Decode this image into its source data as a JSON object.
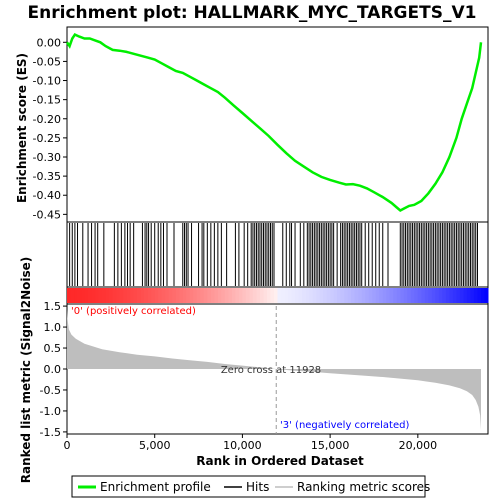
{
  "chart_data": [
    {
      "type": "line",
      "title": "Enrichment plot: HALLMARK_MYC_TARGETS_V1",
      "ylabel": "Enrichment score (ES)",
      "ylim": [
        -0.47,
        0.04
      ],
      "xlim": [
        0,
        24000
      ],
      "y_ticks": [
        "0.00",
        "-0.05",
        "-0.10",
        "-0.15",
        "-0.20",
        "-0.25",
        "-0.30",
        "-0.35",
        "-0.40",
        "-0.45"
      ],
      "y_tick_values": [
        0.0,
        -0.05,
        -0.1,
        -0.15,
        -0.2,
        -0.25,
        -0.3,
        -0.35,
        -0.4,
        -0.45
      ],
      "series": [
        {
          "name": "Enrichment profile",
          "color": "#00ee00",
          "x": [
            0,
            150,
            300,
            450,
            700,
            1000,
            1300,
            1600,
            1900,
            2200,
            2600,
            3000,
            3400,
            3800,
            4200,
            4600,
            5000,
            5400,
            5800,
            6200,
            6600,
            7000,
            7400,
            7800,
            8200,
            8600,
            9000,
            9500,
            10000,
            10500,
            11000,
            11500,
            12000,
            12500,
            13000,
            13500,
            14000,
            14500,
            15000,
            15500,
            15900,
            16300,
            16700,
            17100,
            17500,
            18000,
            18500,
            18800,
            19000,
            19200,
            19500,
            19800,
            20200,
            20600,
            21000,
            21400,
            21800,
            22200,
            22500,
            22800,
            23100,
            23300,
            23500,
            23600
          ],
          "y": [
            0.0,
            -0.01,
            0.01,
            0.02,
            0.015,
            0.01,
            0.01,
            0.005,
            0.0,
            -0.01,
            -0.02,
            -0.022,
            -0.025,
            -0.03,
            -0.035,
            -0.04,
            -0.045,
            -0.055,
            -0.065,
            -0.075,
            -0.08,
            -0.09,
            -0.1,
            -0.11,
            -0.12,
            -0.13,
            -0.145,
            -0.165,
            -0.185,
            -0.205,
            -0.225,
            -0.245,
            -0.268,
            -0.29,
            -0.31,
            -0.325,
            -0.34,
            -0.352,
            -0.36,
            -0.367,
            -0.372,
            -0.371,
            -0.375,
            -0.382,
            -0.392,
            -0.405,
            -0.42,
            -0.432,
            -0.44,
            -0.435,
            -0.428,
            -0.425,
            -0.415,
            -0.395,
            -0.37,
            -0.34,
            -0.3,
            -0.25,
            -0.2,
            -0.16,
            -0.12,
            -0.08,
            -0.04,
            0.0
          ]
        }
      ]
    },
    {
      "type": "scatter",
      "title": "",
      "ylabel": "",
      "series": [
        {
          "name": "Hits",
          "color": "#000000",
          "x": [
            150,
            300,
            450,
            600,
            900,
            1200,
            1400,
            1600,
            1750,
            2100,
            2700,
            2900,
            3100,
            3300,
            3450,
            3600,
            3800,
            4300,
            4450,
            4550,
            4650,
            4800,
            5000,
            5200,
            5350,
            5500,
            5700,
            6100,
            6600,
            6700,
            6800,
            6900,
            7100,
            7500,
            7700,
            7800,
            8000,
            8200,
            8400,
            8600,
            8800,
            9100,
            9600,
            9800,
            10100,
            10300,
            10500,
            10600,
            10700,
            10800,
            10900,
            11000,
            11100,
            11200,
            11300,
            11400,
            11500,
            11600,
            11700,
            11800,
            12300,
            12500,
            12700,
            12800,
            13000,
            13300,
            13500,
            13700,
            13800,
            13900,
            14000,
            14100,
            14200,
            14300,
            14400,
            14500,
            14600,
            14700,
            14800,
            14900,
            15000,
            15100,
            15200,
            15400,
            15600,
            15700,
            15800,
            15900,
            16000,
            16100,
            16200,
            16300,
            16400,
            16500,
            16600,
            16700,
            16800,
            17000,
            17200,
            17400,
            17600,
            17800,
            18000,
            18300,
            19000,
            19100,
            19200,
            19300,
            19400,
            19500,
            19600,
            19700,
            19800,
            19900,
            20000,
            20100,
            20200,
            20300,
            20400,
            20500,
            20600,
            20700,
            20800,
            20900,
            21000,
            21100,
            21200,
            21300,
            21400,
            21500,
            21600,
            21700,
            21800,
            21900,
            22000,
            22100,
            22200,
            22300,
            22400,
            22500,
            22600,
            22700,
            22800,
            22900,
            23000,
            23100,
            23200,
            23300,
            23400
          ]
        }
      ]
    },
    {
      "type": "area",
      "title": "",
      "ylabel": "Ranked list metric (Signal2Noise)",
      "xlabel": "Rank in Ordered Dataset",
      "ylim": [
        -1.55,
        1.55
      ],
      "xlim": [
        0,
        24000
      ],
      "y_ticks": [
        "1.5",
        "1.0",
        "0.5",
        "0.0",
        "-0.5",
        "-1.0",
        "-1.5"
      ],
      "y_tick_values": [
        1.5,
        1.0,
        0.5,
        0.0,
        -0.5,
        -1.0,
        -1.5
      ],
      "x_ticks": [
        "0",
        "5,000",
        "10,000",
        "15,000",
        "20,000"
      ],
      "x_tick_values": [
        0,
        5000,
        10000,
        15000,
        20000
      ],
      "series": [
        {
          "name": "Ranking metric scores",
          "color": "#bebebe",
          "x": [
            0,
            30,
            100,
            250,
            500,
            1000,
            2000,
            3000,
            4000,
            5000,
            6000,
            7000,
            8000,
            9000,
            10000,
            11000,
            11928,
            13000,
            14000,
            15000,
            16000,
            17000,
            18000,
            19000,
            20000,
            21000,
            21800,
            22400,
            22800,
            23100,
            23300,
            23450,
            23550,
            23600
          ],
          "y": [
            1.42,
            1.2,
            0.95,
            0.82,
            0.72,
            0.6,
            0.47,
            0.4,
            0.34,
            0.3,
            0.25,
            0.21,
            0.17,
            0.12,
            0.08,
            0.04,
            0.0,
            -0.04,
            -0.07,
            -0.1,
            -0.13,
            -0.16,
            -0.19,
            -0.23,
            -0.27,
            -0.33,
            -0.39,
            -0.46,
            -0.53,
            -0.62,
            -0.74,
            -0.9,
            -1.1,
            -1.45
          ]
        }
      ],
      "annotations": {
        "positive": "'0' (positively correlated)",
        "negative": "'3' (negatively correlated)",
        "zero_cross": "Zero cross at 11928",
        "zero_cross_x": 11928,
        "positive_color": "#ff0000",
        "negative_color": "#0000ff"
      }
    }
  ],
  "legend": {
    "items": [
      {
        "label": "Enrichment profile",
        "color": "#00ee00"
      },
      {
        "label": "Hits",
        "color": "#000000"
      },
      {
        "label": "Ranking metric scores",
        "color": "#bebebe"
      }
    ],
    "placement": "bottom"
  }
}
